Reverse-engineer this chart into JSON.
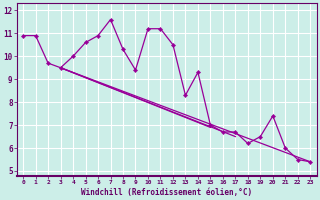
{
  "xlabel": "Windchill (Refroidissement éolien,°C)",
  "xlim": [
    -0.5,
    23.5
  ],
  "ylim": [
    4.8,
    12.3
  ],
  "yticks": [
    5,
    6,
    7,
    8,
    9,
    10,
    11,
    12
  ],
  "xticks": [
    0,
    1,
    2,
    3,
    4,
    5,
    6,
    7,
    8,
    9,
    10,
    11,
    12,
    13,
    14,
    15,
    16,
    17,
    18,
    19,
    20,
    21,
    22,
    23
  ],
  "bg_color": "#cceee8",
  "line_color": "#990099",
  "grid_color": "#aadddd",
  "main_x": [
    0,
    1,
    2,
    3,
    4,
    5,
    6,
    7,
    8,
    9,
    10,
    11,
    12,
    13,
    14,
    15,
    16,
    17,
    18,
    19,
    20,
    21,
    22,
    23
  ],
  "main_y": [
    10.9,
    10.9,
    9.7,
    9.5,
    10.0,
    10.6,
    10.9,
    11.6,
    10.3,
    9.4,
    11.2,
    11.2,
    10.5,
    8.3,
    9.3,
    7.0,
    6.7,
    6.7,
    6.2,
    6.5,
    7.4,
    6.0,
    5.5,
    5.4
  ],
  "line2_x": [
    3,
    15
  ],
  "line2_y": [
    9.5,
    6.9
  ],
  "line3_x": [
    3,
    17
  ],
  "line3_y": [
    9.5,
    6.5
  ],
  "line4_x": [
    3,
    23
  ],
  "line4_y": [
    9.5,
    5.4
  ],
  "xlabel_color": "#660066",
  "tick_color": "#660066",
  "spine_color": "#660066"
}
